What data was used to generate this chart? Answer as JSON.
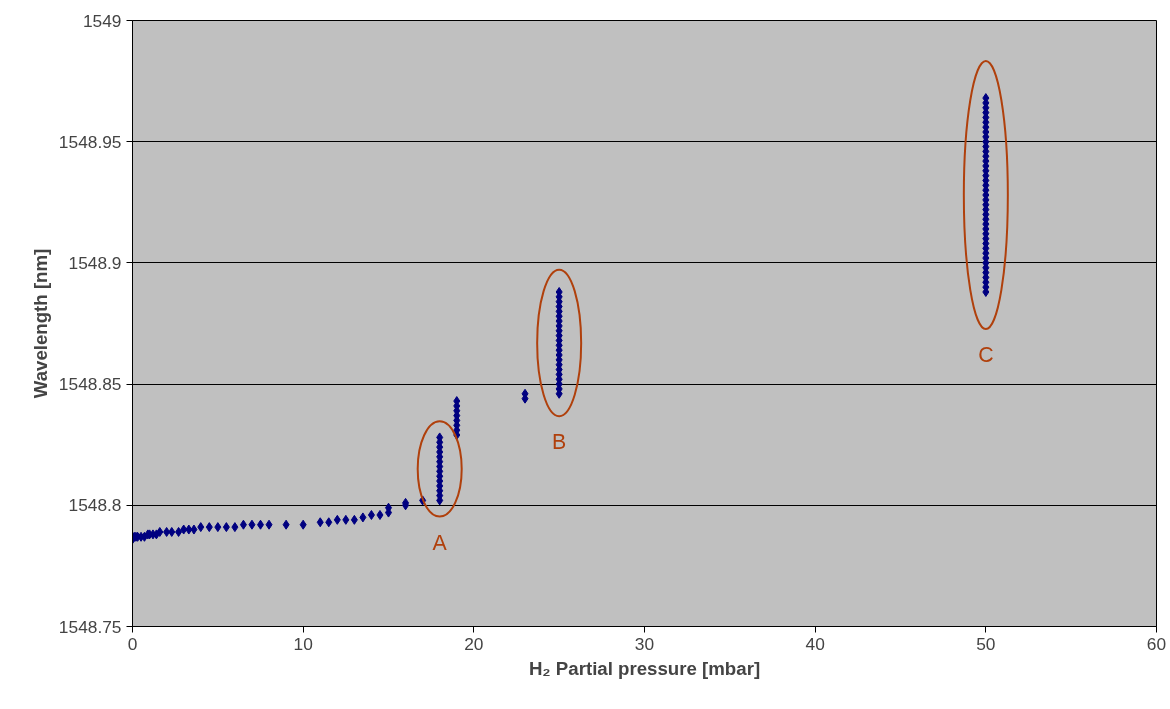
{
  "chart_data": {
    "type": "scatter",
    "xlabel": "H₂ Partial pressure [mbar]",
    "ylabel": "Wavelength [nm]",
    "xlim": [
      0,
      60
    ],
    "ylim": [
      1548.75,
      1549
    ],
    "xticks": [
      0,
      10,
      20,
      30,
      40,
      50,
      60
    ],
    "yticks": [
      1548.75,
      1548.8,
      1548.85,
      1548.9,
      1548.95,
      1549
    ],
    "grid": "y",
    "marker": "diamond",
    "series": [
      {
        "color": "#000080",
        "x": [
          0,
          0.1,
          0.2,
          0.3,
          0.5,
          0.7,
          0.9,
          1.0,
          1.2,
          1.4,
          1.6,
          2.0,
          2.3,
          2.7,
          3.0,
          3.3,
          3.6,
          4.0,
          4.5,
          5.0,
          5.5,
          6.0,
          6.5,
          7.0,
          7.5,
          8.0,
          9.0,
          10.0,
          11.0,
          11.5,
          12.0,
          12.5,
          13.0,
          13.5,
          14.0,
          14.5,
          15.0,
          15.0,
          16.0,
          16.0,
          17.0,
          18,
          18,
          18,
          18,
          18,
          18,
          18,
          18,
          18,
          18,
          18,
          18,
          18,
          18,
          19,
          19,
          19,
          19,
          19,
          19,
          19,
          19,
          23,
          23,
          25,
          25,
          25,
          25,
          25,
          25,
          25,
          25,
          25,
          25,
          25,
          25,
          25,
          25,
          25,
          25,
          25,
          25,
          25,
          25,
          25,
          25,
          50,
          50,
          50,
          50,
          50,
          50,
          50,
          50,
          50,
          50,
          50,
          50,
          50,
          50,
          50,
          50,
          50,
          50,
          50,
          50,
          50,
          50,
          50,
          50,
          50,
          50,
          50,
          50,
          50,
          50,
          50,
          50,
          50,
          50,
          50,
          50,
          50,
          50,
          50,
          50,
          50
        ],
        "values": [
          1548.786,
          1548.787,
          1548.787,
          1548.787,
          1548.787,
          1548.787,
          1548.788,
          1548.788,
          1548.788,
          1548.788,
          1548.789,
          1548.789,
          1548.789,
          1548.789,
          1548.79,
          1548.79,
          1548.79,
          1548.791,
          1548.791,
          1548.791,
          1548.791,
          1548.791,
          1548.792,
          1548.792,
          1548.792,
          1548.792,
          1548.792,
          1548.792,
          1548.793,
          1548.793,
          1548.794,
          1548.794,
          1548.794,
          1548.795,
          1548.796,
          1548.796,
          1548.797,
          1548.799,
          1548.8,
          1548.801,
          1548.802,
          1548.802,
          1548.804,
          1548.806,
          1548.808,
          1548.81,
          1548.812,
          1548.814,
          1548.816,
          1548.818,
          1548.82,
          1548.822,
          1548.824,
          1548.826,
          1548.828,
          1548.829,
          1548.831,
          1548.833,
          1548.835,
          1548.837,
          1548.839,
          1548.841,
          1548.843,
          1548.844,
          1548.846,
          1548.846,
          1548.848,
          1548.85,
          1548.852,
          1548.854,
          1548.856,
          1548.858,
          1548.86,
          1548.862,
          1548.864,
          1548.866,
          1548.868,
          1548.87,
          1548.872,
          1548.874,
          1548.876,
          1548.878,
          1548.88,
          1548.882,
          1548.884,
          1548.886,
          1548.888,
          1548.888,
          1548.89,
          1548.892,
          1548.894,
          1548.896,
          1548.898,
          1548.9,
          1548.902,
          1548.904,
          1548.906,
          1548.908,
          1548.91,
          1548.912,
          1548.914,
          1548.916,
          1548.918,
          1548.92,
          1548.922,
          1548.924,
          1548.926,
          1548.928,
          1548.93,
          1548.932,
          1548.934,
          1548.936,
          1548.938,
          1548.94,
          1548.942,
          1548.944,
          1548.946,
          1548.948,
          1548.95,
          1548.952,
          1548.954,
          1548.956,
          1548.958,
          1548.96,
          1548.962,
          1548.964,
          1548.966,
          1548.968
        ]
      }
    ],
    "annotations": [
      "A",
      "B",
      "C"
    ]
  }
}
